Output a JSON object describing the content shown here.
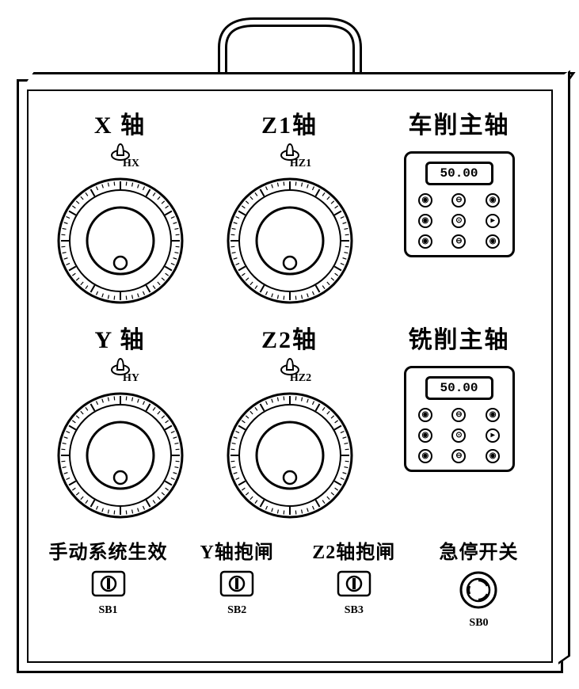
{
  "colors": {
    "stroke": "#000000",
    "bg": "#ffffff"
  },
  "axes": {
    "x": {
      "title": "X  轴",
      "toggle_label": "HX"
    },
    "z1": {
      "title": "Z1轴",
      "toggle_label": "HZ1"
    },
    "y": {
      "title": "Y  轴",
      "toggle_label": "HY"
    },
    "z2": {
      "title": "Z2轴",
      "toggle_label": "HZ2"
    }
  },
  "spindles": {
    "turning": {
      "title": "车削主轴",
      "display": "50.00"
    },
    "milling": {
      "title": "铣削主轴",
      "display": "50.00"
    }
  },
  "keypad_glyphs": [
    "◉",
    "⊖",
    "◉",
    "◉",
    "⊙",
    "▸",
    "◉",
    "⊖",
    "◉"
  ],
  "bottom": {
    "manual": {
      "title": "手动系统生效",
      "label": "SB1"
    },
    "ybrake": {
      "title": "Y轴抱闸",
      "label": "SB2"
    },
    "z2brake": {
      "title": "Z2轴抱闸",
      "label": "SB3"
    },
    "estop": {
      "title": "急停开关",
      "label": "SB0"
    }
  },
  "dial": {
    "tick_count": 60,
    "outer_r": 78,
    "inner_r": 42
  }
}
